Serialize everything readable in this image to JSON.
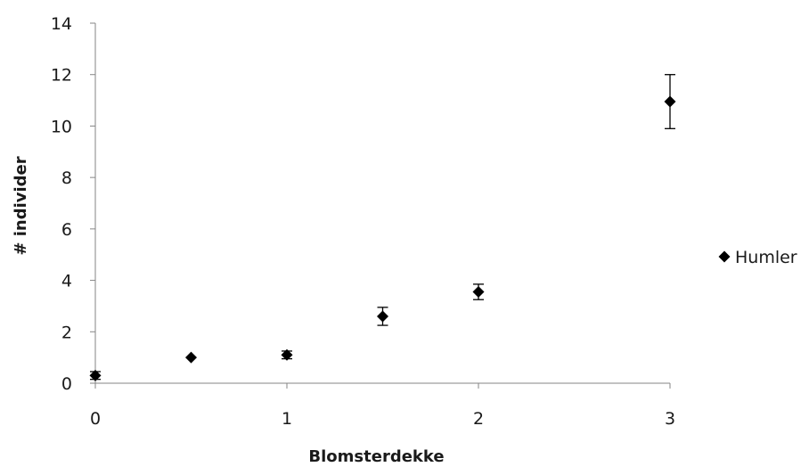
{
  "chart_data": {
    "type": "scatter",
    "xlabel": "Blomsterdekke",
    "ylabel": "# individer",
    "xlim": [
      0,
      3
    ],
    "ylim": [
      0,
      14
    ],
    "x_ticks": [
      "0",
      "1",
      "2",
      "3"
    ],
    "y_ticks": [
      "0",
      "2",
      "4",
      "6",
      "8",
      "10",
      "12",
      "14"
    ],
    "grid": false,
    "legend_position": "right",
    "series": [
      {
        "name": "Humler",
        "marker": "diamond",
        "color": "#000000",
        "points": [
          {
            "x": 0,
            "y": 0.3,
            "err": 0.15
          },
          {
            "x": 0.5,
            "y": 1.0,
            "err": 0
          },
          {
            "x": 1,
            "y": 1.1,
            "err": 0.15
          },
          {
            "x": 1.5,
            "y": 2.6,
            "err": 0.35
          },
          {
            "x": 2,
            "y": 3.55,
            "err": 0.3
          },
          {
            "x": 3,
            "y": 10.95,
            "err": 1.05
          }
        ]
      }
    ]
  }
}
